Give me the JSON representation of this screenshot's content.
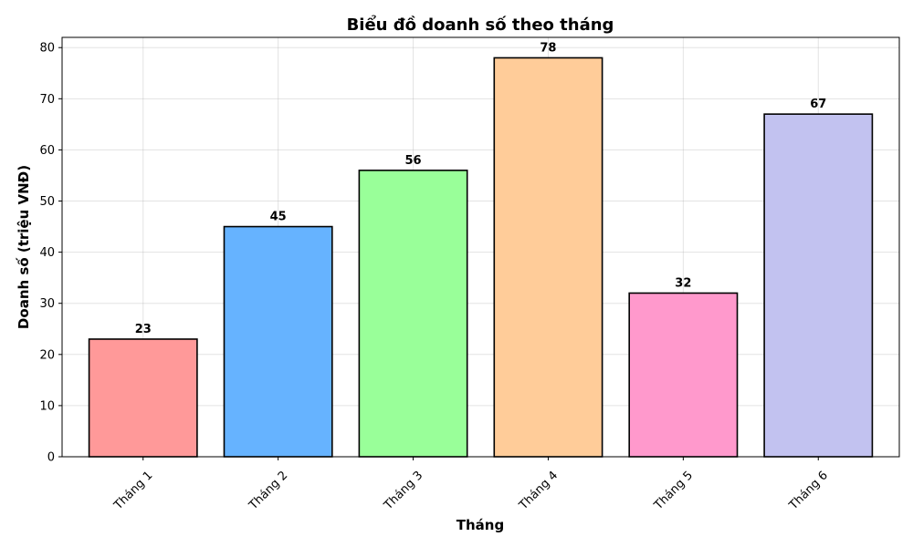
{
  "chart_data": {
    "type": "bar",
    "title": "Biểu đồ doanh số theo tháng",
    "xlabel": "Tháng",
    "ylabel": "Doanh số (triệu VNĐ)",
    "categories": [
      "Tháng 1",
      "Tháng 2",
      "Tháng 3",
      "Tháng 4",
      "Tháng 5",
      "Tháng 6"
    ],
    "values": [
      23,
      45,
      56,
      78,
      32,
      67
    ],
    "colors": [
      "#ff9999",
      "#66b3ff",
      "#99ff99",
      "#ffcc99",
      "#ff99cc",
      "#c2c2f0"
    ],
    "ylim": [
      0,
      82
    ],
    "yticks": [
      0,
      10,
      20,
      30,
      40,
      50,
      60,
      70,
      80
    ],
    "grid": true,
    "data_labels": true
  }
}
